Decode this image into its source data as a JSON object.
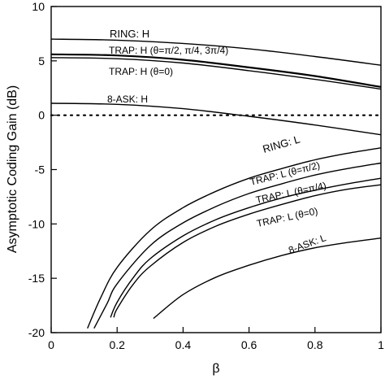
{
  "chart_data": {
    "type": "line",
    "xlabel": "β",
    "ylabel": "Asymptotic Coding Gain (dB)",
    "xlim": [
      0,
      1
    ],
    "ylim": [
      -20,
      10
    ],
    "xticks": [
      "0",
      "0.2",
      "0.4",
      "0.6",
      "0.8",
      "1"
    ],
    "yticks": [
      "10",
      "5",
      "0",
      "-5",
      "-10",
      "-15",
      "-20"
    ],
    "grid": false,
    "legend": "inline curve labels",
    "reference_line": {
      "y": 0,
      "style": "dotted"
    },
    "series": [
      {
        "name": "RING: H",
        "x": [
          0,
          0.2,
          0.4,
          0.6,
          0.8,
          1.0
        ],
        "y": [
          7.0,
          6.9,
          6.6,
          6.1,
          5.4,
          4.6
        ]
      },
      {
        "name": "TRAP: H (θ=π/2, π/4, 3π/4)",
        "x": [
          0,
          0.2,
          0.4,
          0.6,
          0.8,
          1.0
        ],
        "y": [
          5.6,
          5.5,
          5.1,
          4.4,
          3.6,
          2.6
        ]
      },
      {
        "name": "TRAP: H (θ=0)",
        "x": [
          0,
          0.2,
          0.4,
          0.6,
          0.8,
          1.0
        ],
        "y": [
          5.3,
          5.2,
          4.8,
          4.1,
          3.3,
          2.4
        ]
      },
      {
        "name": "8-ASK: H",
        "x": [
          0,
          0.2,
          0.4,
          0.6,
          0.8,
          1.0
        ],
        "y": [
          1.1,
          1.0,
          0.6,
          -0.1,
          -0.9,
          -1.8
        ]
      },
      {
        "name": "RING: L",
        "x": [
          0.11,
          0.15,
          0.2,
          0.3,
          0.4,
          0.5,
          0.6,
          0.7,
          0.8,
          0.9,
          1.0
        ],
        "y": [
          -19.6,
          -16.8,
          -14.0,
          -10.6,
          -8.5,
          -7.0,
          -5.8,
          -4.9,
          -4.1,
          -3.5,
          -3.0
        ]
      },
      {
        "name": "TRAP: L (θ=π/2)",
        "x": [
          0.13,
          0.17,
          0.2,
          0.3,
          0.4,
          0.5,
          0.6,
          0.7,
          0.8,
          0.9,
          1.0
        ],
        "y": [
          -19.6,
          -17.3,
          -15.5,
          -12.0,
          -9.9,
          -8.4,
          -7.2,
          -6.3,
          -5.5,
          -4.9,
          -4.4
        ]
      },
      {
        "name": "TRAP: L (θ=π/4)",
        "x": [
          0.18,
          0.2,
          0.25,
          0.3,
          0.4,
          0.5,
          0.6,
          0.7,
          0.8,
          0.9,
          1.0
        ],
        "y": [
          -18.6,
          -17.2,
          -14.9,
          -13.2,
          -11.1,
          -9.6,
          -8.5,
          -7.6,
          -6.9,
          -6.3,
          -5.8
        ]
      },
      {
        "name": "TRAP: L (θ=0)",
        "x": [
          0.19,
          0.2,
          0.25,
          0.3,
          0.4,
          0.5,
          0.6,
          0.7,
          0.8,
          0.9,
          1.0
        ],
        "y": [
          -18.6,
          -17.8,
          -15.5,
          -13.9,
          -11.7,
          -10.2,
          -9.1,
          -8.2,
          -7.4,
          -6.8,
          -6.4
        ]
      },
      {
        "name": "8-ASK: L",
        "x": [
          0.31,
          0.4,
          0.5,
          0.6,
          0.7,
          0.8,
          0.9,
          1.0
        ],
        "y": [
          -18.7,
          -16.5,
          -14.9,
          -13.8,
          -12.9,
          -12.2,
          -11.7,
          -11.3
        ]
      }
    ]
  }
}
